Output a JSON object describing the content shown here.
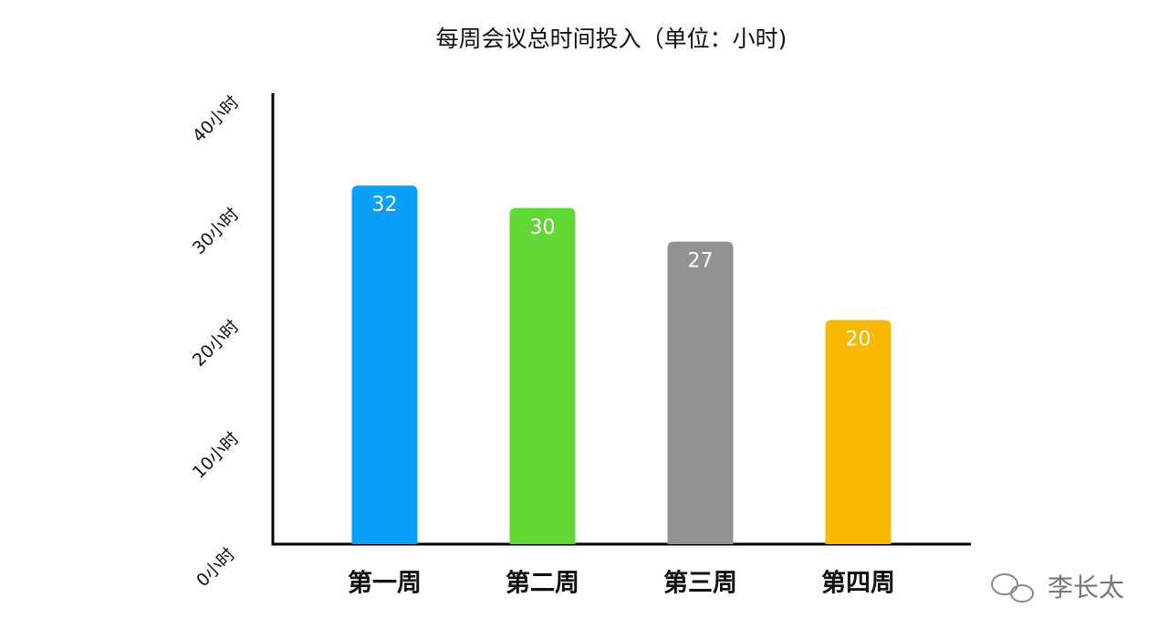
{
  "chart_data": {
    "type": "bar",
    "title": "每周会议总时间投入（单位：小时)",
    "categories": [
      "第一周",
      "第二周",
      "第三周",
      "第四周"
    ],
    "values": [
      32,
      30,
      27,
      20
    ],
    "colors": [
      "#0aa0f7",
      "#61d836",
      "#929292",
      "#fab800"
    ],
    "ylim": [
      0,
      40
    ],
    "yticks": [
      {
        "value": 0,
        "label": "0小时"
      },
      {
        "value": 10,
        "label": "10小时"
      },
      {
        "value": 20,
        "label": "20小时"
      },
      {
        "value": 30,
        "label": "30小时"
      },
      {
        "value": 40,
        "label": "40小时"
      }
    ],
    "grid": false,
    "watermark": "李长太"
  }
}
